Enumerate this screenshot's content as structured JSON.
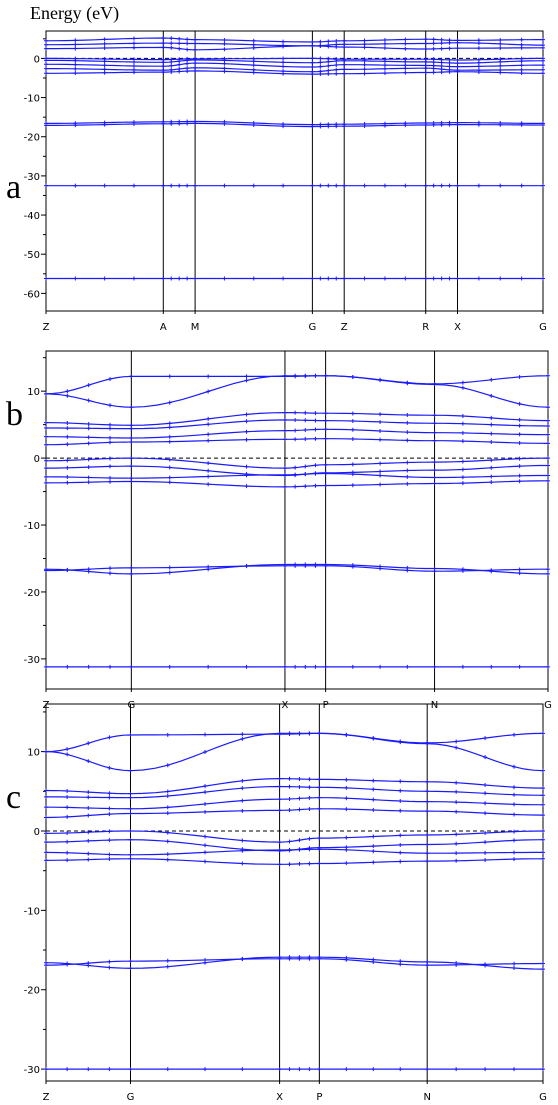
{
  "chart_data": [
    {
      "type": "line",
      "panel_label": "a",
      "title": "Energy (eV)",
      "ylabel": "Energy (eV)",
      "ylim": [
        -64.5,
        7
      ],
      "yticks": [
        0,
        -10,
        -20,
        -30,
        -40,
        -50,
        -60
      ],
      "fermi_level": 0,
      "grid": false,
      "k_points": [
        {
          "label": "Z",
          "x": 0
        },
        {
          "label": "A",
          "x": 2.36
        },
        {
          "label": "M",
          "x": 3.0
        },
        {
          "label": "G",
          "x": 5.36
        },
        {
          "label": "Z",
          "x": 6.0
        },
        {
          "label": "R",
          "x": 7.64
        },
        {
          "label": "X",
          "x": 8.28
        },
        {
          "label": "G",
          "x": 10.0
        }
      ],
      "bands_note": "dense bands near 0 to 5 eV and 0 to -4 eV; flat core bands",
      "series": [
        {
          "values": [
            -56.2,
            -56.2,
            -56.2,
            -56.2,
            -56.2,
            -56.2,
            -56.2,
            -56.2
          ]
        },
        {
          "values": [
            -32.5,
            -32.5,
            -32.5,
            -32.5,
            -32.5,
            -32.5,
            -32.5,
            -32.5
          ]
        },
        {
          "values": [
            -16.6,
            -16.2,
            -16.1,
            -16.9,
            -16.8,
            -16.5,
            -16.4,
            -16.6
          ]
        },
        {
          "values": [
            -17.1,
            -16.7,
            -16.6,
            -17.4,
            -17.3,
            -17.0,
            -16.9,
            -17.0
          ]
        },
        {
          "values": [
            -3.8,
            -3.5,
            -3.2,
            -4.0,
            -3.9,
            -3.6,
            -3.4,
            -3.8
          ]
        },
        {
          "values": [
            -2.6,
            -3.0,
            -2.4,
            -3.4,
            -2.8,
            -2.5,
            -3.0,
            -2.9
          ]
        },
        {
          "values": [
            -1.5,
            -2.0,
            -1.2,
            -2.2,
            -1.6,
            -1.8,
            -2.1,
            -1.7
          ]
        },
        {
          "values": [
            -0.5,
            -1.0,
            -0.4,
            -1.1,
            -0.6,
            -0.9,
            -1.2,
            -0.6
          ]
        },
        {
          "values": [
            0.0,
            -0.3,
            -0.1,
            0.0,
            -0.2,
            -0.2,
            -0.4,
            0.0
          ]
        },
        {
          "values": [
            2.5,
            2.8,
            2.2,
            3.2,
            2.9,
            2.4,
            2.6,
            2.7
          ]
        },
        {
          "values": [
            3.5,
            3.9,
            3.8,
            3.2,
            3.6,
            3.8,
            4.0,
            3.4
          ]
        },
        {
          "values": [
            4.5,
            5.2,
            4.8,
            4.2,
            4.5,
            4.9,
            4.6,
            4.8
          ]
        }
      ]
    },
    {
      "type": "line",
      "panel_label": "b",
      "ylim": [
        -34.5,
        16
      ],
      "yticks": [
        10,
        0,
        -10,
        -20,
        -30
      ],
      "fermi_level": 0,
      "grid": false,
      "k_points": [
        {
          "label": "Z",
          "x": 0
        },
        {
          "label": "G",
          "x": 1.7
        },
        {
          "label": "X",
          "x": 4.76
        },
        {
          "label": "P",
          "x": 5.57
        },
        {
          "label": "N",
          "x": 7.74
        },
        {
          "label": "G",
          "x": 10.0
        }
      ],
      "series": [
        {
          "values": [
            -31.2,
            -31.2,
            -31.2,
            -31.2,
            -31.2,
            -31.2
          ]
        },
        {
          "values": [
            -16.6,
            -17.3,
            -15.9,
            -15.9,
            -16.5,
            -17.3
          ]
        },
        {
          "values": [
            -16.8,
            -16.4,
            -16.1,
            -16.1,
            -16.9,
            -16.6
          ]
        },
        {
          "values": [
            -3.7,
            -3.5,
            -4.3,
            -4.1,
            -3.8,
            -3.4
          ]
        },
        {
          "values": [
            -2.8,
            -3.0,
            -2.5,
            -2.3,
            -2.9,
            -2.6
          ]
        },
        {
          "values": [
            -1.5,
            -1.2,
            -2.6,
            -2.2,
            -1.8,
            -1.1
          ]
        },
        {
          "values": [
            -0.4,
            0.0,
            -1.5,
            -1.0,
            -0.6,
            0.0
          ]
        },
        {
          "values": [
            2.0,
            2.4,
            2.8,
            2.9,
            2.6,
            2.2
          ]
        },
        {
          "values": [
            3.2,
            3.0,
            4.1,
            4.3,
            3.8,
            3.5
          ]
        },
        {
          "values": [
            4.5,
            4.4,
            5.7,
            5.6,
            5.2,
            4.8
          ]
        },
        {
          "values": [
            5.3,
            4.9,
            6.8,
            6.7,
            6.4,
            5.6
          ]
        },
        {
          "values": [
            9.6,
            7.6,
            12.3,
            12.3,
            11.0,
            7.6
          ]
        },
        {
          "values": [
            9.6,
            12.2,
            12.2,
            12.3,
            11.1,
            12.3
          ]
        }
      ]
    },
    {
      "type": "line",
      "panel_label": "c",
      "ylim": [
        -31.5,
        16
      ],
      "yticks": [
        10,
        0,
        -10,
        -20,
        -30
      ],
      "fermi_level": 0,
      "grid": false,
      "k_points": [
        {
          "label": "Z",
          "x": 0
        },
        {
          "label": "G",
          "x": 1.7
        },
        {
          "label": "X",
          "x": 4.7
        },
        {
          "label": "P",
          "x": 5.5
        },
        {
          "label": "N",
          "x": 7.67
        },
        {
          "label": "G",
          "x": 10.0
        }
      ],
      "series": [
        {
          "values": [
            -30.0,
            -30.0,
            -30.0,
            -30.0,
            -30.0,
            -30.0
          ]
        },
        {
          "values": [
            -16.6,
            -17.3,
            -15.9,
            -15.9,
            -16.5,
            -17.4
          ]
        },
        {
          "values": [
            -16.9,
            -16.4,
            -16.1,
            -16.1,
            -16.9,
            -16.7
          ]
        },
        {
          "values": [
            -3.7,
            -3.5,
            -4.2,
            -4.1,
            -3.8,
            -3.5
          ]
        },
        {
          "values": [
            -2.7,
            -3.0,
            -2.4,
            -2.3,
            -2.8,
            -2.7
          ]
        },
        {
          "values": [
            -1.4,
            -1.1,
            -2.5,
            -2.1,
            -1.7,
            -1.1
          ]
        },
        {
          "values": [
            -0.3,
            0.0,
            -1.4,
            -0.9,
            -0.5,
            0.0
          ]
        },
        {
          "values": [
            1.7,
            2.2,
            2.6,
            2.8,
            2.5,
            2.0
          ]
        },
        {
          "values": [
            3.0,
            2.8,
            4.0,
            4.2,
            3.7,
            3.3
          ]
        },
        {
          "values": [
            4.3,
            4.2,
            5.6,
            5.5,
            5.0,
            4.5
          ]
        },
        {
          "values": [
            5.1,
            4.7,
            6.6,
            6.5,
            6.2,
            5.4
          ]
        },
        {
          "values": [
            10.0,
            7.6,
            12.3,
            12.3,
            11.0,
            7.6
          ]
        },
        {
          "values": [
            10.0,
            12.1,
            12.2,
            12.3,
            11.1,
            12.3
          ]
        }
      ]
    }
  ],
  "colors": {
    "band": "#1a1aff",
    "axis": "#000000",
    "fermi": "#000000"
  }
}
